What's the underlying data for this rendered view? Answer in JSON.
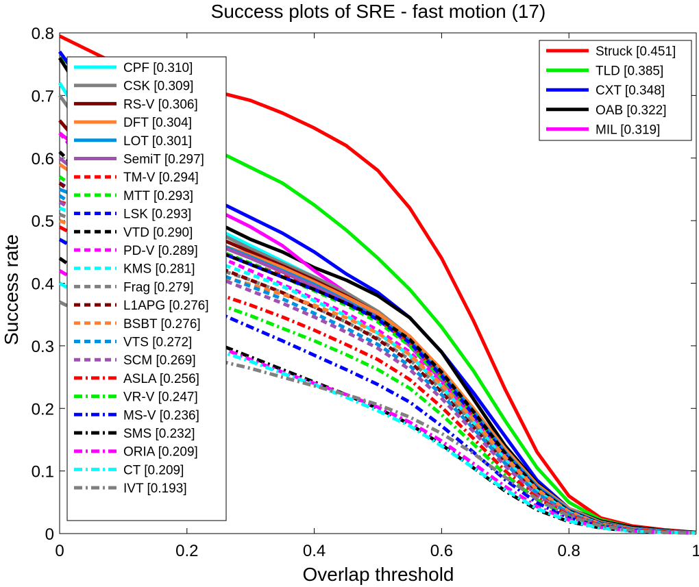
{
  "chart_data": {
    "type": "line",
    "title": "Success plots of SRE - fast motion (17)",
    "xlabel": "Overlap threshold",
    "ylabel": "Success rate",
    "xlim": [
      0,
      1
    ],
    "ylim": [
      0,
      0.8
    ],
    "xticks": [
      "0",
      "0.2",
      "0.4",
      "0.6",
      "0.8",
      "1"
    ],
    "yticks": [
      "0",
      "0.1",
      "0.2",
      "0.3",
      "0.4",
      "0.5",
      "0.6",
      "0.7",
      "0.8"
    ],
    "grid": false,
    "legends": [
      "upper-right",
      "upper-left"
    ],
    "x": [
      0,
      0.05,
      0.1,
      0.15,
      0.2,
      0.25,
      0.3,
      0.35,
      0.4,
      0.45,
      0.5,
      0.55,
      0.6,
      0.65,
      0.7,
      0.75,
      0.8,
      0.85,
      0.9,
      0.95,
      1.0
    ],
    "series": [
      {
        "name": "Struck [0.451]",
        "color": "#ff0000",
        "style": "solid",
        "legend": 0,
        "values": [
          0.795,
          0.77,
          0.745,
          0.728,
          0.715,
          0.705,
          0.692,
          0.672,
          0.648,
          0.62,
          0.58,
          0.52,
          0.44,
          0.34,
          0.23,
          0.13,
          0.06,
          0.025,
          0.012,
          0.006,
          0.002
        ]
      },
      {
        "name": "TLD [0.385]",
        "color": "#00ee00",
        "style": "solid",
        "legend": 0,
        "values": [
          0.76,
          0.73,
          0.7,
          0.67,
          0.64,
          0.61,
          0.585,
          0.56,
          0.525,
          0.485,
          0.44,
          0.39,
          0.33,
          0.26,
          0.18,
          0.105,
          0.05,
          0.022,
          0.01,
          0.005,
          0.002
        ]
      },
      {
        "name": "CXT [0.348]",
        "color": "#0000ff",
        "style": "solid",
        "legend": 0,
        "values": [
          0.77,
          0.7,
          0.64,
          0.59,
          0.56,
          0.53,
          0.505,
          0.48,
          0.45,
          0.415,
          0.385,
          0.345,
          0.29,
          0.225,
          0.155,
          0.085,
          0.04,
          0.018,
          0.008,
          0.004,
          0.001
        ]
      },
      {
        "name": "OAB [0.322]",
        "color": "#000000",
        "style": "solid",
        "legend": 0,
        "values": [
          0.76,
          0.68,
          0.61,
          0.56,
          0.52,
          0.495,
          0.47,
          0.45,
          0.425,
          0.405,
          0.38,
          0.345,
          0.29,
          0.215,
          0.14,
          0.08,
          0.04,
          0.02,
          0.01,
          0.005,
          0.002
        ]
      },
      {
        "name": "MIL [0.319]",
        "color": "#ff00ff",
        "style": "solid",
        "legend": 0,
        "values": [
          0.64,
          0.6,
          0.57,
          0.55,
          0.535,
          0.515,
          0.49,
          0.46,
          0.42,
          0.385,
          0.345,
          0.3,
          0.245,
          0.185,
          0.125,
          0.07,
          0.035,
          0.017,
          0.008,
          0.004,
          0.001
        ]
      },
      {
        "name": "CPF [0.310]",
        "color": "#00ffff",
        "style": "solid",
        "legend": 1,
        "values": [
          0.72,
          0.64,
          0.58,
          0.54,
          0.51,
          0.485,
          0.46,
          0.435,
          0.41,
          0.385,
          0.355,
          0.315,
          0.26,
          0.195,
          0.13,
          0.075,
          0.04,
          0.018,
          0.008,
          0.004,
          0.001
        ]
      },
      {
        "name": "CSK [0.309]",
        "color": "#808080",
        "style": "solid",
        "legend": 1,
        "values": [
          0.7,
          0.63,
          0.575,
          0.535,
          0.505,
          0.48,
          0.455,
          0.432,
          0.41,
          0.385,
          0.355,
          0.315,
          0.258,
          0.195,
          0.13,
          0.075,
          0.038,
          0.018,
          0.008,
          0.004,
          0.001
        ]
      },
      {
        "name": "RS-V [0.306]",
        "color": "#800000",
        "style": "solid",
        "legend": 1,
        "values": [
          0.66,
          0.6,
          0.555,
          0.52,
          0.495,
          0.472,
          0.45,
          0.428,
          0.405,
          0.38,
          0.352,
          0.312,
          0.255,
          0.192,
          0.128,
          0.073,
          0.037,
          0.017,
          0.008,
          0.004,
          0.001
        ]
      },
      {
        "name": "DFT [0.304]",
        "color": "#ff8030",
        "style": "solid",
        "legend": 1,
        "values": [
          0.59,
          0.555,
          0.525,
          0.5,
          0.482,
          0.462,
          0.445,
          0.425,
          0.402,
          0.378,
          0.352,
          0.315,
          0.262,
          0.2,
          0.135,
          0.078,
          0.04,
          0.018,
          0.008,
          0.004,
          0.001
        ]
      },
      {
        "name": "LOT [0.301]",
        "color": "#0090e0",
        "style": "solid",
        "legend": 1,
        "values": [
          0.55,
          0.53,
          0.51,
          0.495,
          0.48,
          0.462,
          0.442,
          0.42,
          0.398,
          0.372,
          0.345,
          0.308,
          0.255,
          0.195,
          0.13,
          0.075,
          0.038,
          0.017,
          0.008,
          0.004,
          0.001
        ]
      },
      {
        "name": "SemiT [0.297]",
        "color": "#a050b0",
        "style": "solid",
        "legend": 1,
        "values": [
          0.6,
          0.56,
          0.528,
          0.502,
          0.48,
          0.46,
          0.44,
          0.418,
          0.395,
          0.37,
          0.342,
          0.302,
          0.248,
          0.188,
          0.125,
          0.072,
          0.036,
          0.016,
          0.007,
          0.003,
          0.001
        ]
      },
      {
        "name": "TM-V [0.294]",
        "color": "#ff0000",
        "style": "dash",
        "legend": 1,
        "values": [
          0.53,
          0.515,
          0.5,
          0.485,
          0.47,
          0.452,
          0.432,
          0.412,
          0.39,
          0.368,
          0.342,
          0.305,
          0.252,
          0.19,
          0.125,
          0.072,
          0.036,
          0.016,
          0.007,
          0.003,
          0.001
        ]
      },
      {
        "name": "MTT [0.293]",
        "color": "#00ee00",
        "style": "dash",
        "legend": 1,
        "values": [
          0.57,
          0.535,
          0.508,
          0.488,
          0.47,
          0.452,
          0.432,
          0.41,
          0.388,
          0.365,
          0.338,
          0.3,
          0.248,
          0.188,
          0.124,
          0.071,
          0.035,
          0.016,
          0.007,
          0.003,
          0.001
        ]
      },
      {
        "name": "LSK [0.293]",
        "color": "#0000ff",
        "style": "dash",
        "legend": 1,
        "values": [
          0.56,
          0.53,
          0.505,
          0.485,
          0.468,
          0.45,
          0.43,
          0.41,
          0.39,
          0.368,
          0.342,
          0.305,
          0.252,
          0.19,
          0.125,
          0.072,
          0.036,
          0.016,
          0.007,
          0.003,
          0.001
        ]
      },
      {
        "name": "VTD [0.290]",
        "color": "#000000",
        "style": "dash",
        "legend": 1,
        "values": [
          0.61,
          0.56,
          0.52,
          0.492,
          0.47,
          0.45,
          0.43,
          0.41,
          0.39,
          0.368,
          0.345,
          0.31,
          0.258,
          0.195,
          0.128,
          0.072,
          0.036,
          0.016,
          0.007,
          0.003,
          0.001
        ]
      },
      {
        "name": "PD-V [0.289]",
        "color": "#ff00ff",
        "style": "dash",
        "legend": 1,
        "values": [
          0.64,
          0.58,
          0.53,
          0.492,
          0.465,
          0.442,
          0.42,
          0.398,
          0.375,
          0.352,
          0.325,
          0.29,
          0.24,
          0.182,
          0.12,
          0.068,
          0.034,
          0.015,
          0.007,
          0.003,
          0.001
        ]
      },
      {
        "name": "KMS [0.281]",
        "color": "#00ffff",
        "style": "dash",
        "legend": 1,
        "values": [
          0.52,
          0.5,
          0.482,
          0.465,
          0.45,
          0.432,
          0.414,
          0.395,
          0.372,
          0.348,
          0.32,
          0.285,
          0.235,
          0.178,
          0.118,
          0.068,
          0.034,
          0.015,
          0.007,
          0.003,
          0.001
        ]
      },
      {
        "name": "Frag [0.279]",
        "color": "#808080",
        "style": "dash",
        "legend": 1,
        "values": [
          0.51,
          0.49,
          0.472,
          0.456,
          0.44,
          0.422,
          0.405,
          0.385,
          0.362,
          0.338,
          0.312,
          0.278,
          0.23,
          0.175,
          0.117,
          0.067,
          0.034,
          0.015,
          0.007,
          0.003,
          0.001
        ]
      },
      {
        "name": "L1APG [0.276]",
        "color": "#800000",
        "style": "dash",
        "legend": 1,
        "values": [
          0.56,
          0.52,
          0.49,
          0.465,
          0.445,
          0.425,
          0.405,
          0.385,
          0.362,
          0.338,
          0.31,
          0.275,
          0.226,
          0.17,
          0.112,
          0.064,
          0.032,
          0.014,
          0.006,
          0.003,
          0.001
        ]
      },
      {
        "name": "BSBT [0.276]",
        "color": "#ff8030",
        "style": "dash",
        "legend": 1,
        "values": [
          0.5,
          0.478,
          0.458,
          0.442,
          0.428,
          0.412,
          0.398,
          0.382,
          0.365,
          0.345,
          0.32,
          0.286,
          0.238,
          0.182,
          0.122,
          0.07,
          0.035,
          0.015,
          0.007,
          0.003,
          0.001
        ]
      },
      {
        "name": "VTS [0.272]",
        "color": "#0090e0",
        "style": "dash",
        "legend": 1,
        "values": [
          0.54,
          0.505,
          0.478,
          0.455,
          0.435,
          0.415,
          0.395,
          0.375,
          0.352,
          0.328,
          0.302,
          0.268,
          0.222,
          0.168,
          0.112,
          0.064,
          0.032,
          0.014,
          0.006,
          0.003,
          0.001
        ]
      },
      {
        "name": "SCM [0.269]",
        "color": "#a050b0",
        "style": "dash",
        "legend": 1,
        "values": [
          0.53,
          0.498,
          0.47,
          0.448,
          0.428,
          0.408,
          0.388,
          0.368,
          0.346,
          0.322,
          0.296,
          0.262,
          0.216,
          0.163,
          0.108,
          0.061,
          0.031,
          0.013,
          0.006,
          0.003,
          0.001
        ]
      },
      {
        "name": "ASLA [0.256]",
        "color": "#ff0000",
        "style": "dashdot",
        "legend": 1,
        "values": [
          0.49,
          0.462,
          0.438,
          0.418,
          0.4,
          0.382,
          0.365,
          0.346,
          0.325,
          0.302,
          0.278,
          0.246,
          0.202,
          0.152,
          0.1,
          0.057,
          0.029,
          0.013,
          0.006,
          0.003,
          0.001
        ]
      },
      {
        "name": "VR-V [0.247]",
        "color": "#00ee00",
        "style": "dashdot",
        "legend": 1,
        "values": [
          0.47,
          0.445,
          0.422,
          0.402,
          0.384,
          0.366,
          0.348,
          0.328,
          0.308,
          0.286,
          0.262,
          0.232,
          0.19,
          0.143,
          0.094,
          0.054,
          0.027,
          0.012,
          0.005,
          0.002,
          0.001
        ]
      },
      {
        "name": "MS-V [0.236]",
        "color": "#0000ff",
        "style": "dashdot",
        "legend": 1,
        "values": [
          0.47,
          0.44,
          0.415,
          0.392,
          0.372,
          0.352,
          0.33,
          0.308,
          0.285,
          0.262,
          0.238,
          0.21,
          0.172,
          0.13,
          0.086,
          0.049,
          0.025,
          0.011,
          0.005,
          0.002,
          0.001
        ]
      },
      {
        "name": "SMS [0.232]",
        "color": "#000000",
        "style": "dashdot",
        "legend": 1,
        "values": [
          0.44,
          0.405,
          0.372,
          0.345,
          0.322,
          0.302,
          0.282,
          0.262,
          0.242,
          0.222,
          0.2,
          0.175,
          0.142,
          0.105,
          0.068,
          0.038,
          0.019,
          0.009,
          0.004,
          0.002,
          0.001
        ]
      },
      {
        "name": "ORIA [0.209]",
        "color": "#ff00ff",
        "style": "dashdot",
        "legend": 1,
        "values": [
          0.42,
          0.39,
          0.362,
          0.338,
          0.318,
          0.298,
          0.278,
          0.258,
          0.24,
          0.222,
          0.202,
          0.178,
          0.148,
          0.112,
          0.075,
          0.043,
          0.022,
          0.01,
          0.004,
          0.002,
          0.001
        ]
      },
      {
        "name": "CT [0.209]",
        "color": "#00ffff",
        "style": "dashdot",
        "legend": 1,
        "values": [
          0.4,
          0.372,
          0.348,
          0.328,
          0.31,
          0.292,
          0.275,
          0.256,
          0.238,
          0.218,
          0.196,
          0.172,
          0.14,
          0.105,
          0.07,
          0.04,
          0.02,
          0.009,
          0.004,
          0.002,
          0.001
        ]
      },
      {
        "name": "IVT [0.193]",
        "color": "#808080",
        "style": "dashdot",
        "legend": 1,
        "values": [
          0.37,
          0.345,
          0.322,
          0.305,
          0.29,
          0.276,
          0.264,
          0.25,
          0.236,
          0.222,
          0.206,
          0.186,
          0.16,
          0.128,
          0.09,
          0.055,
          0.028,
          0.012,
          0.005,
          0.002,
          0.001
        ]
      }
    ]
  }
}
